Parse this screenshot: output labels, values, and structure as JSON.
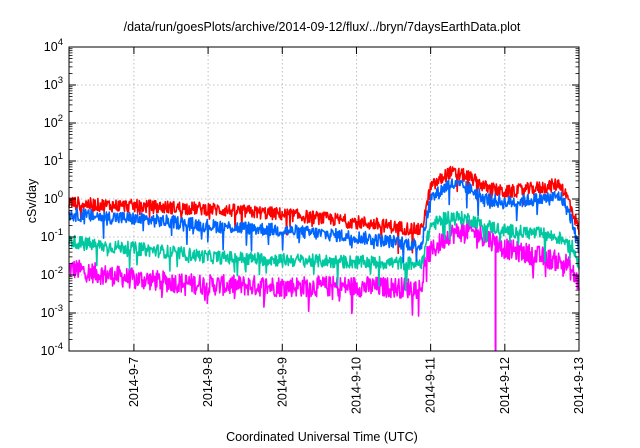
{
  "chart_data": {
    "type": "line",
    "title": "/data/run/goesPlots/archive/2014-09-12/flux/../bryn/7daysEarthData.plot",
    "xlabel": "Coordinated Universal Time (UTC)",
    "ylabel": "cSv/day",
    "yscale": "log",
    "ylim": [
      0.0001,
      10000
    ],
    "y_ticks": [
      {
        "base": "10",
        "exp": "-4",
        "value": 0.0001
      },
      {
        "base": "10",
        "exp": "-3",
        "value": 0.001
      },
      {
        "base": "10",
        "exp": "-2",
        "value": 0.01
      },
      {
        "base": "10",
        "exp": "-1",
        "value": 0.1
      },
      {
        "base": "10",
        "exp": "0",
        "value": 1
      },
      {
        "base": "10",
        "exp": "1",
        "value": 10
      },
      {
        "base": "10",
        "exp": "2",
        "value": 100
      },
      {
        "base": "10",
        "exp": "3",
        "value": 1000
      },
      {
        "base": "10",
        "exp": "4",
        "value": 10000
      }
    ],
    "xlim": [
      "2014-09-06T03:00",
      "2014-09-13T00:00"
    ],
    "x_ticks": [
      "2014-9-7",
      "2014-9-8",
      "2014-9-9",
      "2014-9-10",
      "2014-9-11",
      "2014-9-12",
      "2014-9-13"
    ],
    "grid": true,
    "legend": "none",
    "series": [
      {
        "color": "#ff00ff",
        "points": [
          [
            "2014-09-06T03:00",
            0.015
          ],
          [
            "2014-09-06T12:00",
            0.011
          ],
          [
            "2014-09-07T00:00",
            0.008
          ],
          [
            "2014-09-07T12:00",
            0.0065
          ],
          [
            "2014-09-08T00:00",
            0.0055
          ],
          [
            "2014-09-09T00:00",
            0.005
          ],
          [
            "2014-09-10T00:00",
            0.005
          ],
          [
            "2014-09-10T21:00",
            0.0045
          ],
          [
            "2014-09-10T22:30",
            0.03
          ],
          [
            "2014-09-11T06:00",
            0.12
          ],
          [
            "2014-09-11T12:00",
            0.15
          ],
          [
            "2014-09-11T18:00",
            0.1
          ],
          [
            "2014-09-12T00:00",
            0.05
          ],
          [
            "2014-09-12T12:00",
            0.03
          ],
          [
            "2014-09-12T20:00",
            0.02
          ],
          [
            "2014-09-13T00:00",
            0.006
          ]
        ]
      },
      {
        "color": "#ff0000",
        "points": [
          [
            "2014-09-06T03:00",
            0.8
          ],
          [
            "2014-09-06T12:00",
            0.7
          ],
          [
            "2014-09-07T00:00",
            0.65
          ],
          [
            "2014-09-07T12:00",
            0.6
          ],
          [
            "2014-09-08T00:00",
            0.55
          ],
          [
            "2014-09-09T00:00",
            0.4
          ],
          [
            "2014-09-10T00:00",
            0.25
          ],
          [
            "2014-09-10T21:00",
            0.15
          ],
          [
            "2014-09-11T00:00",
            2.0
          ],
          [
            "2014-09-11T06:00",
            5.0
          ],
          [
            "2014-09-11T12:00",
            4.0
          ],
          [
            "2014-09-11T18:00",
            2.0
          ],
          [
            "2014-09-12T00:00",
            1.5
          ],
          [
            "2014-09-12T12:00",
            2.0
          ],
          [
            "2014-09-12T18:00",
            2.5
          ],
          [
            "2014-09-12T21:00",
            0.8
          ],
          [
            "2014-09-13T00:00",
            0.15
          ]
        ]
      },
      {
        "color": "#00c8a0",
        "points": [
          [
            "2014-09-06T03:00",
            0.08
          ],
          [
            "2014-09-06T12:00",
            0.06
          ],
          [
            "2014-09-07T00:00",
            0.05
          ],
          [
            "2014-09-07T12:00",
            0.04
          ],
          [
            "2014-09-08T00:00",
            0.03
          ],
          [
            "2014-09-09T00:00",
            0.025
          ],
          [
            "2014-09-10T00:00",
            0.022
          ],
          [
            "2014-09-10T21:00",
            0.02
          ],
          [
            "2014-09-11T00:00",
            0.2
          ],
          [
            "2014-09-11T06:00",
            0.35
          ],
          [
            "2014-09-11T12:00",
            0.3
          ],
          [
            "2014-09-11T18:00",
            0.2
          ],
          [
            "2014-09-12T00:00",
            0.15
          ],
          [
            "2014-09-12T12:00",
            0.12
          ],
          [
            "2014-09-12T21:00",
            0.08
          ],
          [
            "2014-09-13T00:00",
            0.02
          ]
        ]
      },
      {
        "color": "#0064ff",
        "points": [
          [
            "2014-09-06T03:00",
            0.4
          ],
          [
            "2014-09-06T12:00",
            0.35
          ],
          [
            "2014-09-07T00:00",
            0.3
          ],
          [
            "2014-09-07T12:00",
            0.25
          ],
          [
            "2014-09-08T00:00",
            0.2
          ],
          [
            "2014-09-09T00:00",
            0.15
          ],
          [
            "2014-09-10T00:00",
            0.1
          ],
          [
            "2014-09-10T21:00",
            0.06
          ],
          [
            "2014-09-11T00:00",
            1.0
          ],
          [
            "2014-09-11T06:00",
            2.5
          ],
          [
            "2014-09-11T12:00",
            2.0
          ],
          [
            "2014-09-11T18:00",
            1.0
          ],
          [
            "2014-09-12T00:00",
            0.8
          ],
          [
            "2014-09-12T12:00",
            1.0
          ],
          [
            "2014-09-12T18:00",
            1.2
          ],
          [
            "2014-09-12T21:00",
            0.4
          ],
          [
            "2014-09-13T00:00",
            0.05
          ]
        ]
      }
    ]
  }
}
